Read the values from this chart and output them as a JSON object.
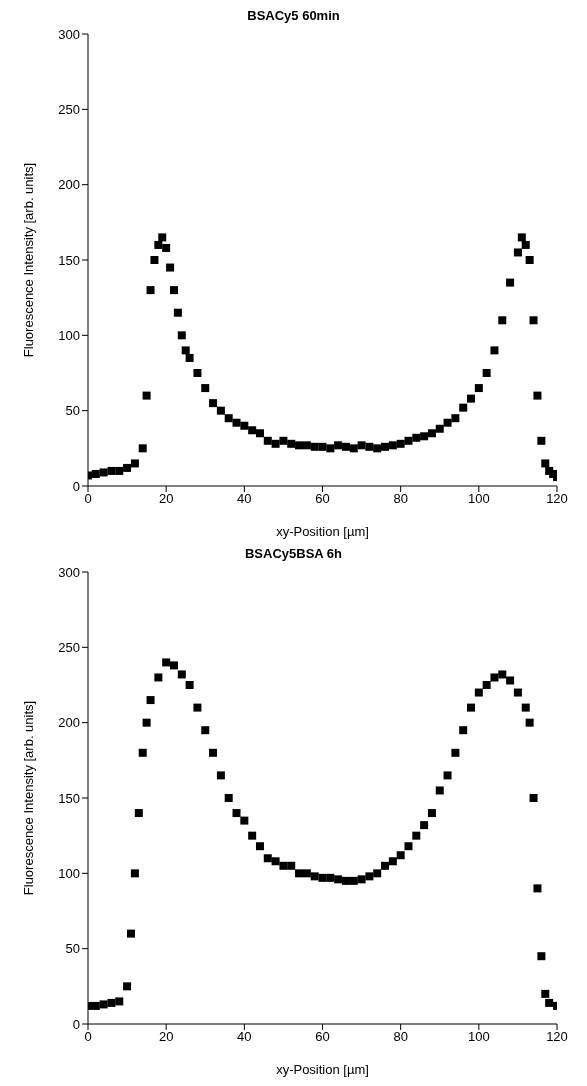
{
  "chart_data": [
    {
      "type": "scatter",
      "title": "BSACy5 60min",
      "xlabel": "xy-Position [µm]",
      "ylabel": "Fluorescence Intensity [arb. units]",
      "xlim": [
        0,
        120
      ],
      "xticks": [
        0,
        20,
        40,
        60,
        80,
        100,
        120
      ],
      "ylim": [
        0,
        300
      ],
      "yticks": [
        0,
        50,
        100,
        150,
        200,
        250,
        300
      ],
      "grid": false,
      "legend": false,
      "marker": "square",
      "series": [
        {
          "color": "#000000",
          "x": [
            0,
            2,
            4,
            6,
            8,
            10,
            12,
            14,
            15,
            16,
            17,
            18,
            19,
            20,
            21,
            22,
            23,
            24,
            25,
            26,
            28,
            30,
            32,
            34,
            36,
            38,
            40,
            42,
            44,
            46,
            48,
            50,
            52,
            54,
            56,
            58,
            60,
            62,
            64,
            66,
            68,
            70,
            72,
            74,
            76,
            78,
            80,
            82,
            84,
            86,
            88,
            90,
            92,
            94,
            96,
            98,
            100,
            102,
            104,
            106,
            108,
            110,
            111,
            112,
            113,
            114,
            115,
            116,
            117,
            118,
            119,
            120
          ],
          "values": [
            7,
            8,
            9,
            10,
            10,
            12,
            15,
            25,
            60,
            130,
            150,
            160,
            165,
            158,
            145,
            130,
            115,
            100,
            90,
            85,
            75,
            65,
            55,
            50,
            45,
            42,
            40,
            37,
            35,
            30,
            28,
            30,
            28,
            27,
            27,
            26,
            26,
            25,
            27,
            26,
            25,
            27,
            26,
            25,
            26,
            27,
            28,
            30,
            32,
            33,
            35,
            38,
            42,
            45,
            52,
            58,
            65,
            75,
            90,
            110,
            135,
            155,
            165,
            160,
            150,
            110,
            60,
            30,
            15,
            10,
            8,
            6
          ]
        }
      ]
    },
    {
      "type": "scatter",
      "title": "BSACy5BSA 6h",
      "xlabel": "xy-Position [µm]",
      "ylabel": "Fluorescence Intensity [arb. units]",
      "xlim": [
        0,
        120
      ],
      "xticks": [
        0,
        20,
        40,
        60,
        80,
        100,
        120
      ],
      "ylim": [
        0,
        300
      ],
      "yticks": [
        0,
        50,
        100,
        150,
        200,
        250,
        300
      ],
      "grid": false,
      "legend": false,
      "marker": "square",
      "series": [
        {
          "color": "#000000",
          "x": [
            0,
            2,
            4,
            6,
            8,
            10,
            11,
            12,
            13,
            14,
            15,
            16,
            18,
            20,
            22,
            24,
            26,
            28,
            30,
            32,
            34,
            36,
            38,
            40,
            42,
            44,
            46,
            48,
            50,
            52,
            54,
            56,
            58,
            60,
            62,
            64,
            66,
            68,
            70,
            72,
            74,
            76,
            78,
            80,
            82,
            84,
            86,
            88,
            90,
            92,
            94,
            96,
            98,
            100,
            102,
            104,
            106,
            108,
            110,
            112,
            113,
            114,
            115,
            116,
            117,
            118,
            120
          ],
          "values": [
            12,
            12,
            13,
            14,
            15,
            25,
            60,
            100,
            140,
            180,
            200,
            215,
            230,
            240,
            238,
            232,
            225,
            210,
            195,
            180,
            165,
            150,
            140,
            135,
            125,
            118,
            110,
            108,
            105,
            105,
            100,
            100,
            98,
            97,
            97,
            96,
            95,
            95,
            96,
            98,
            100,
            105,
            108,
            112,
            118,
            125,
            132,
            140,
            155,
            165,
            180,
            195,
            210,
            220,
            225,
            230,
            232,
            228,
            220,
            210,
            200,
            150,
            90,
            45,
            20,
            14,
            12
          ]
        }
      ]
    }
  ]
}
